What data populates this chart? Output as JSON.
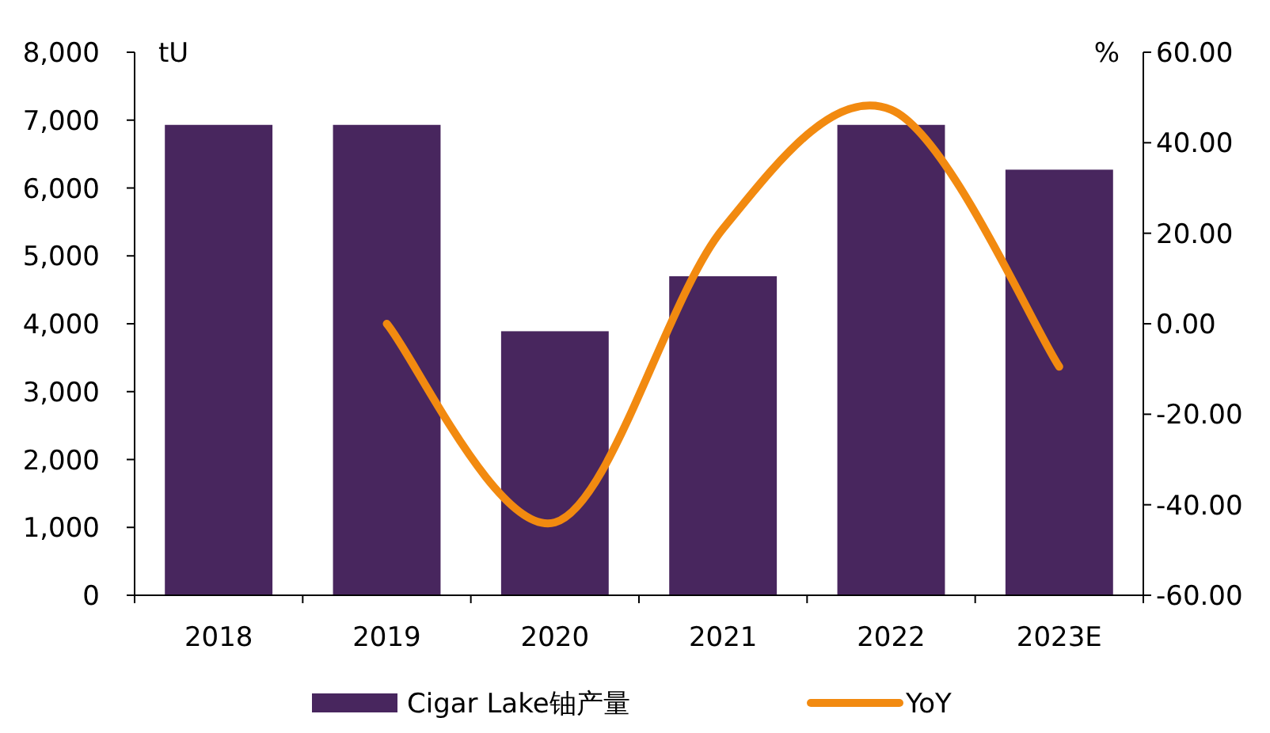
{
  "chart_data": {
    "type": "bar",
    "categories": [
      "2018",
      "2019",
      "2020",
      "2021",
      "2022",
      "2023E"
    ],
    "series": [
      {
        "name": "Cigar Lake铀产量",
        "color": "#48265e",
        "values": [
          6930,
          6930,
          3890,
          4700,
          6930,
          6270
        ]
      },
      {
        "name": "YoY",
        "type": "line",
        "axis": "y2",
        "color": "#f28a10",
        "values": [
          null,
          0,
          -43.9,
          21.0,
          47.3,
          -9.5
        ]
      }
    ],
    "ylabel": "tU",
    "y2label": "%",
    "ylim": [
      0,
      8000
    ],
    "yticks": [
      {
        "value": 0,
        "label": "0"
      },
      {
        "value": 1000,
        "label": "1,000"
      },
      {
        "value": 2000,
        "label": "2,000"
      },
      {
        "value": 3000,
        "label": "3,000"
      },
      {
        "value": 4000,
        "label": "4,000"
      },
      {
        "value": 5000,
        "label": "5,000"
      },
      {
        "value": 6000,
        "label": "6,000"
      },
      {
        "value": 7000,
        "label": "7,000"
      },
      {
        "value": 8000,
        "label": "8,000"
      }
    ],
    "y2lim": [
      -60,
      60
    ],
    "y2ticks": [
      {
        "value": -60,
        "label": "-60.00"
      },
      {
        "value": -40,
        "label": "-40.00"
      },
      {
        "value": -20,
        "label": "-20.00"
      },
      {
        "value": 0,
        "label": "0.00"
      },
      {
        "value": 20,
        "label": "20.00"
      },
      {
        "value": 40,
        "label": "40.00"
      },
      {
        "value": 60,
        "label": "60.00"
      }
    ],
    "legend": "bottom",
    "grid": false,
    "marker": "none",
    "line_style": "solid"
  }
}
